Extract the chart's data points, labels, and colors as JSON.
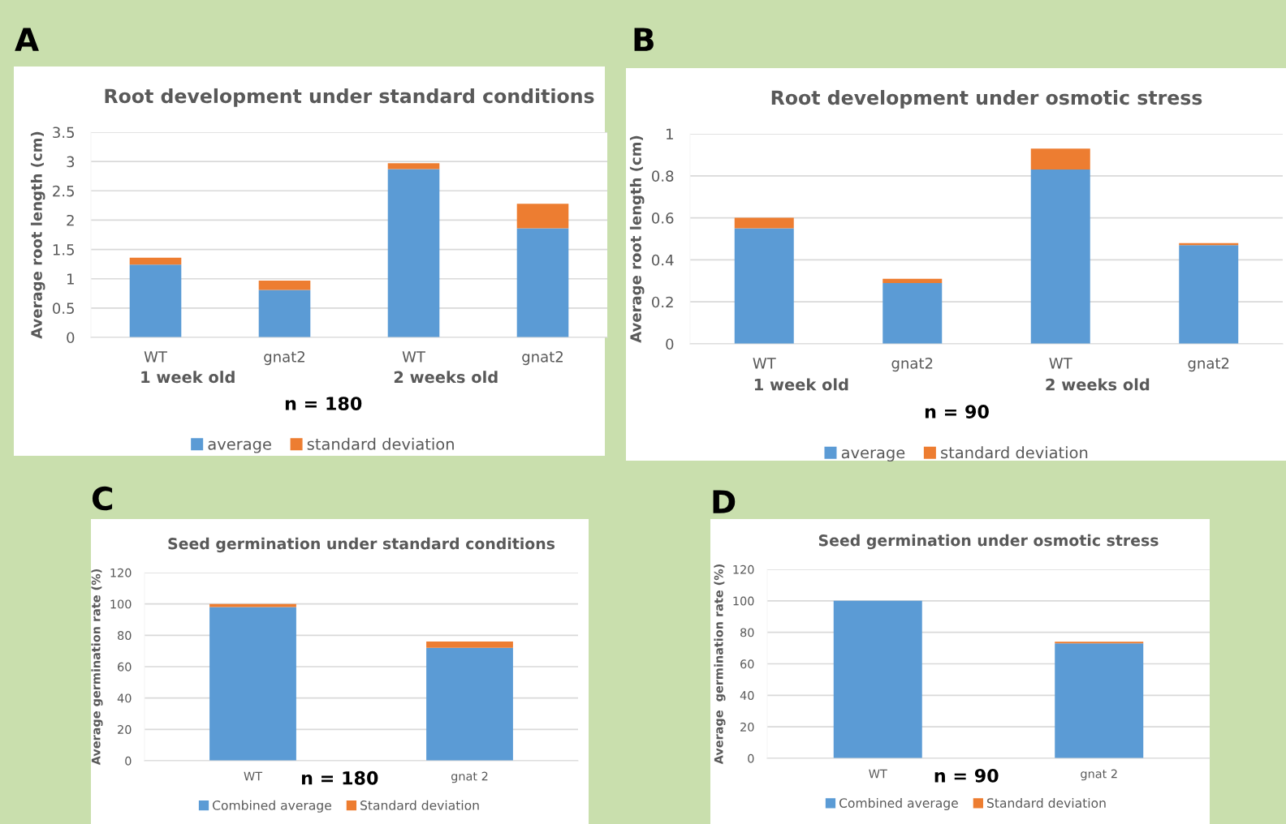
{
  "chart_data": [
    {
      "type": "bar",
      "title": "Root development under standard conditions",
      "ylabel": "Average root length (cm)",
      "categories": [
        "WT",
        "gnat2",
        "WT",
        "gnat2"
      ],
      "stacked": true,
      "series": [
        {
          "name": "average",
          "color": "#5b9bd5",
          "values": [
            1.24,
            0.81,
            2.87,
            1.86
          ]
        },
        {
          "name": "standard deviation",
          "color": "#ed7d31",
          "values": [
            0.12,
            0.16,
            0.1,
            0.42
          ]
        }
      ],
      "ylim": [
        0,
        3.5
      ],
      "yticks": [
        0,
        0.5,
        1,
        1.5,
        2,
        2.5,
        3,
        3.5
      ],
      "grid": "y",
      "legend": "bottom",
      "annotations": [
        "A",
        "1 week old",
        "2 weeks old",
        "n = 180"
      ]
    },
    {
      "type": "bar",
      "title": "Root development under osmotic stress",
      "ylabel": "Average root length (cm)",
      "categories": [
        "WT",
        "gnat2",
        "WT",
        "gnat2"
      ],
      "stacked": true,
      "series": [
        {
          "name": "average",
          "color": "#5b9bd5",
          "values": [
            0.55,
            0.29,
            0.83,
            0.47
          ]
        },
        {
          "name": "standard deviation",
          "color": "#ed7d31",
          "values": [
            0.05,
            0.02,
            0.1,
            0.01
          ]
        }
      ],
      "ylim": [
        0,
        1
      ],
      "yticks": [
        0,
        0.2,
        0.4,
        0.6,
        0.8,
        1
      ],
      "grid": "y",
      "legend": "bottom",
      "annotations": [
        "B",
        "1 week old",
        "2 weeks old",
        "n = 90"
      ]
    },
    {
      "type": "bar",
      "title": "Seed germination under standard conditions",
      "ylabel": "Average germination rate (%)",
      "categories": [
        "WT",
        "gnat 2"
      ],
      "stacked": true,
      "series": [
        {
          "name": "Combined average",
          "color": "#5b9bd5",
          "values": [
            98,
            72
          ]
        },
        {
          "name": "Standard deviation",
          "color": "#ed7d31",
          "values": [
            2,
            4
          ]
        }
      ],
      "ylim": [
        0,
        120
      ],
      "yticks": [
        0,
        20,
        40,
        60,
        80,
        100,
        120
      ],
      "grid": "y",
      "legend": "bottom",
      "annotations": [
        "C",
        "n = 180"
      ]
    },
    {
      "type": "bar",
      "title": "Seed germination under osmotic stress",
      "ylabel": "Average  germination rate (%)",
      "categories": [
        "WT",
        "gnat 2"
      ],
      "stacked": true,
      "series": [
        {
          "name": "Combined average",
          "color": "#5b9bd5",
          "values": [
            100,
            73
          ]
        },
        {
          "name": "Standard deviation",
          "color": "#ed7d31",
          "values": [
            null,
            1
          ]
        }
      ],
      "ylim": [
        0,
        120
      ],
      "yticks": [
        0,
        20,
        40,
        60,
        80,
        100,
        120
      ],
      "grid": "y",
      "legend": "bottom",
      "annotations": [
        "D",
        "n = 90"
      ]
    }
  ]
}
